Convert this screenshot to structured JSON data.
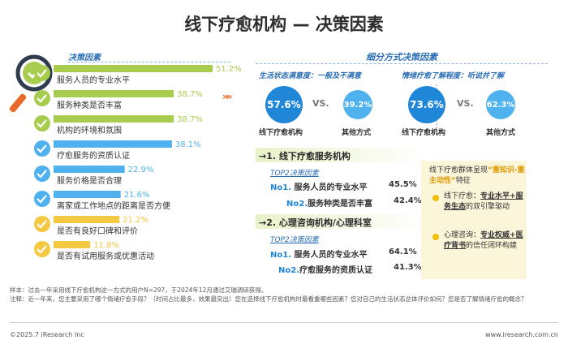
{
  "page": {
    "title": "线下疗愈机构 — 决策因素"
  },
  "left": {
    "header": "决策因素"
  },
  "chart_data": {
    "type": "bar",
    "orientation": "horizontal",
    "categories": [
      "服务人员的专业水平",
      "服务种类是否丰富",
      "机构的环境和氛围",
      "疗愈服务的资质认证",
      "服务价格是否合理",
      "离家或工作地点的距离是否方便",
      "是否有良好口碑和评价",
      "是否有试用服务或优惠活动"
    ],
    "values": [
      51.2,
      38.7,
      38.7,
      38.1,
      22.9,
      21.6,
      21.2,
      11.8
    ],
    "value_labels": [
      "51.2%",
      "38.7%",
      "38.7%",
      "38.1%",
      "22.9%",
      "21.6%",
      "21.2%",
      "11.8%"
    ],
    "xlim": [
      0,
      51.2
    ],
    "colors": [
      "#a8cd4e",
      "#a8cd4e",
      "#a8cd4e",
      "#4fb2ee",
      "#4fb2ee",
      "#4fb2ee",
      "#f5c842",
      "#f5c842"
    ],
    "title": "决策因素"
  },
  "right": {
    "header": "细分方式决策因素",
    "sub_left": "生活状态满意度：一般及不满意",
    "sub_right": "情绪疗愈了解程度：听说并了解",
    "vs": "VS.",
    "circles": [
      {
        "value": "57.6%",
        "label": "线下疗愈机构",
        "color": "#1f86d8"
      },
      {
        "value": "39.2%",
        "label": "其他方式",
        "color": "#4fb2ee"
      },
      {
        "value": "73.6%",
        "label": "线下疗愈机构",
        "color": "#1f86d8"
      },
      {
        "value": "62.3%",
        "label": "其他方式",
        "color": "#4fb2ee"
      }
    ],
    "seg1": {
      "title": "→1. 线下疗愈服务机构",
      "top2": "TOP2决策因素",
      "rows": [
        {
          "no": "No1.",
          "text": "服务人员的专业水平",
          "value": "45.5%"
        },
        {
          "no": "No2.",
          "text": "服务种类是否丰富",
          "value": "42.4%"
        }
      ]
    },
    "seg2": {
      "title": "→2. 心理咨询机构/心理科室",
      "top2": "TOP2决策因素",
      "rows": [
        {
          "no": "No1.",
          "text": "服务人员的专业水平",
          "value": "64.1%"
        },
        {
          "no": "No2.",
          "text": "疗愈服务的资质认证",
          "value": "41.3%"
        }
      ]
    },
    "note": {
      "line1": "线下疗愈群体呈现",
      "highlight": "“重知识-重主动性”",
      "line1_end": "特征",
      "item1_prefix": "线下疗愈：",
      "item1_u1": "专业水平",
      "item1_plus": "+",
      "item1_u2": "服务生态",
      "item1_end": "的双引擎驱动",
      "item2_prefix": "心理咨询：",
      "item2_u1": "专业权威",
      "item2_plus": "+",
      "item2_u2": "医疗背书",
      "item2_end": "的信任闭环构建"
    }
  },
  "footer": {
    "sample": "样本：过去一年采用线下疗愈机构这一方式的用户N=297，于2024年12月通过艾瑞调研获得。",
    "note": "注释：近一年来，您主要采用了哪个情绪疗愈手段？（时间占比最多，效果最突出）您在选择线下疗愈机构时最看重哪些因素？您对自己的生活状态总体评价如何？您是否了解情绪疗愈的概念？",
    "copyright": "©2025.7 iResearch Inc",
    "website": "www.iresearch.com.cn"
  },
  "colors": {
    "green": "#a8cd4e",
    "blue": "#4fb2ee",
    "yellow": "#f5c842",
    "accent": "#1f86d8"
  }
}
